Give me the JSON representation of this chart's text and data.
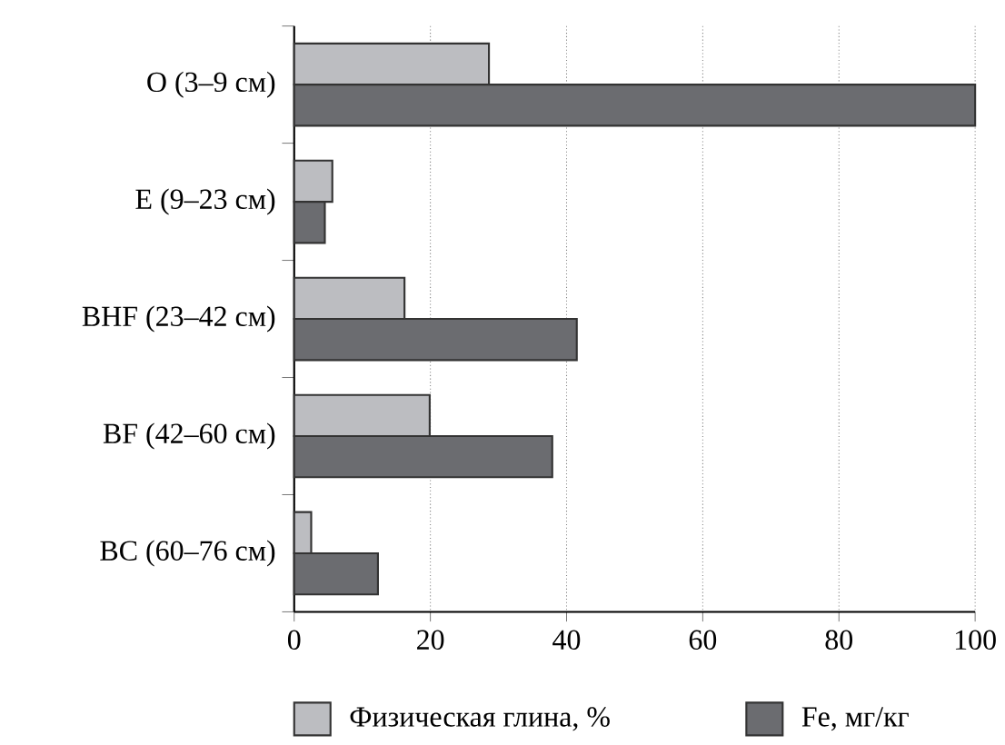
{
  "chart_data": {
    "type": "bar",
    "orientation": "horizontal",
    "categories": [
      "O (3–9 см)",
      "E (9–23 см)",
      "BHF (23–42 см)",
      "BF (42–60 см)",
      "BC (60–76 см)"
    ],
    "series": [
      {
        "name": "Физическая глина, %",
        "color": "#bcbdc1",
        "values": [
          28.6,
          5.6,
          16.2,
          19.9,
          2.5
        ]
      },
      {
        "name": "Fe, мг/кг",
        "color": "#6b6c70",
        "values": [
          100,
          4.5,
          41.5,
          37.9,
          12.3
        ]
      }
    ],
    "xlim": [
      0,
      100
    ],
    "xticks": [
      0,
      20,
      40,
      60,
      80,
      100
    ],
    "grid": "x",
    "legend": "bottom"
  }
}
